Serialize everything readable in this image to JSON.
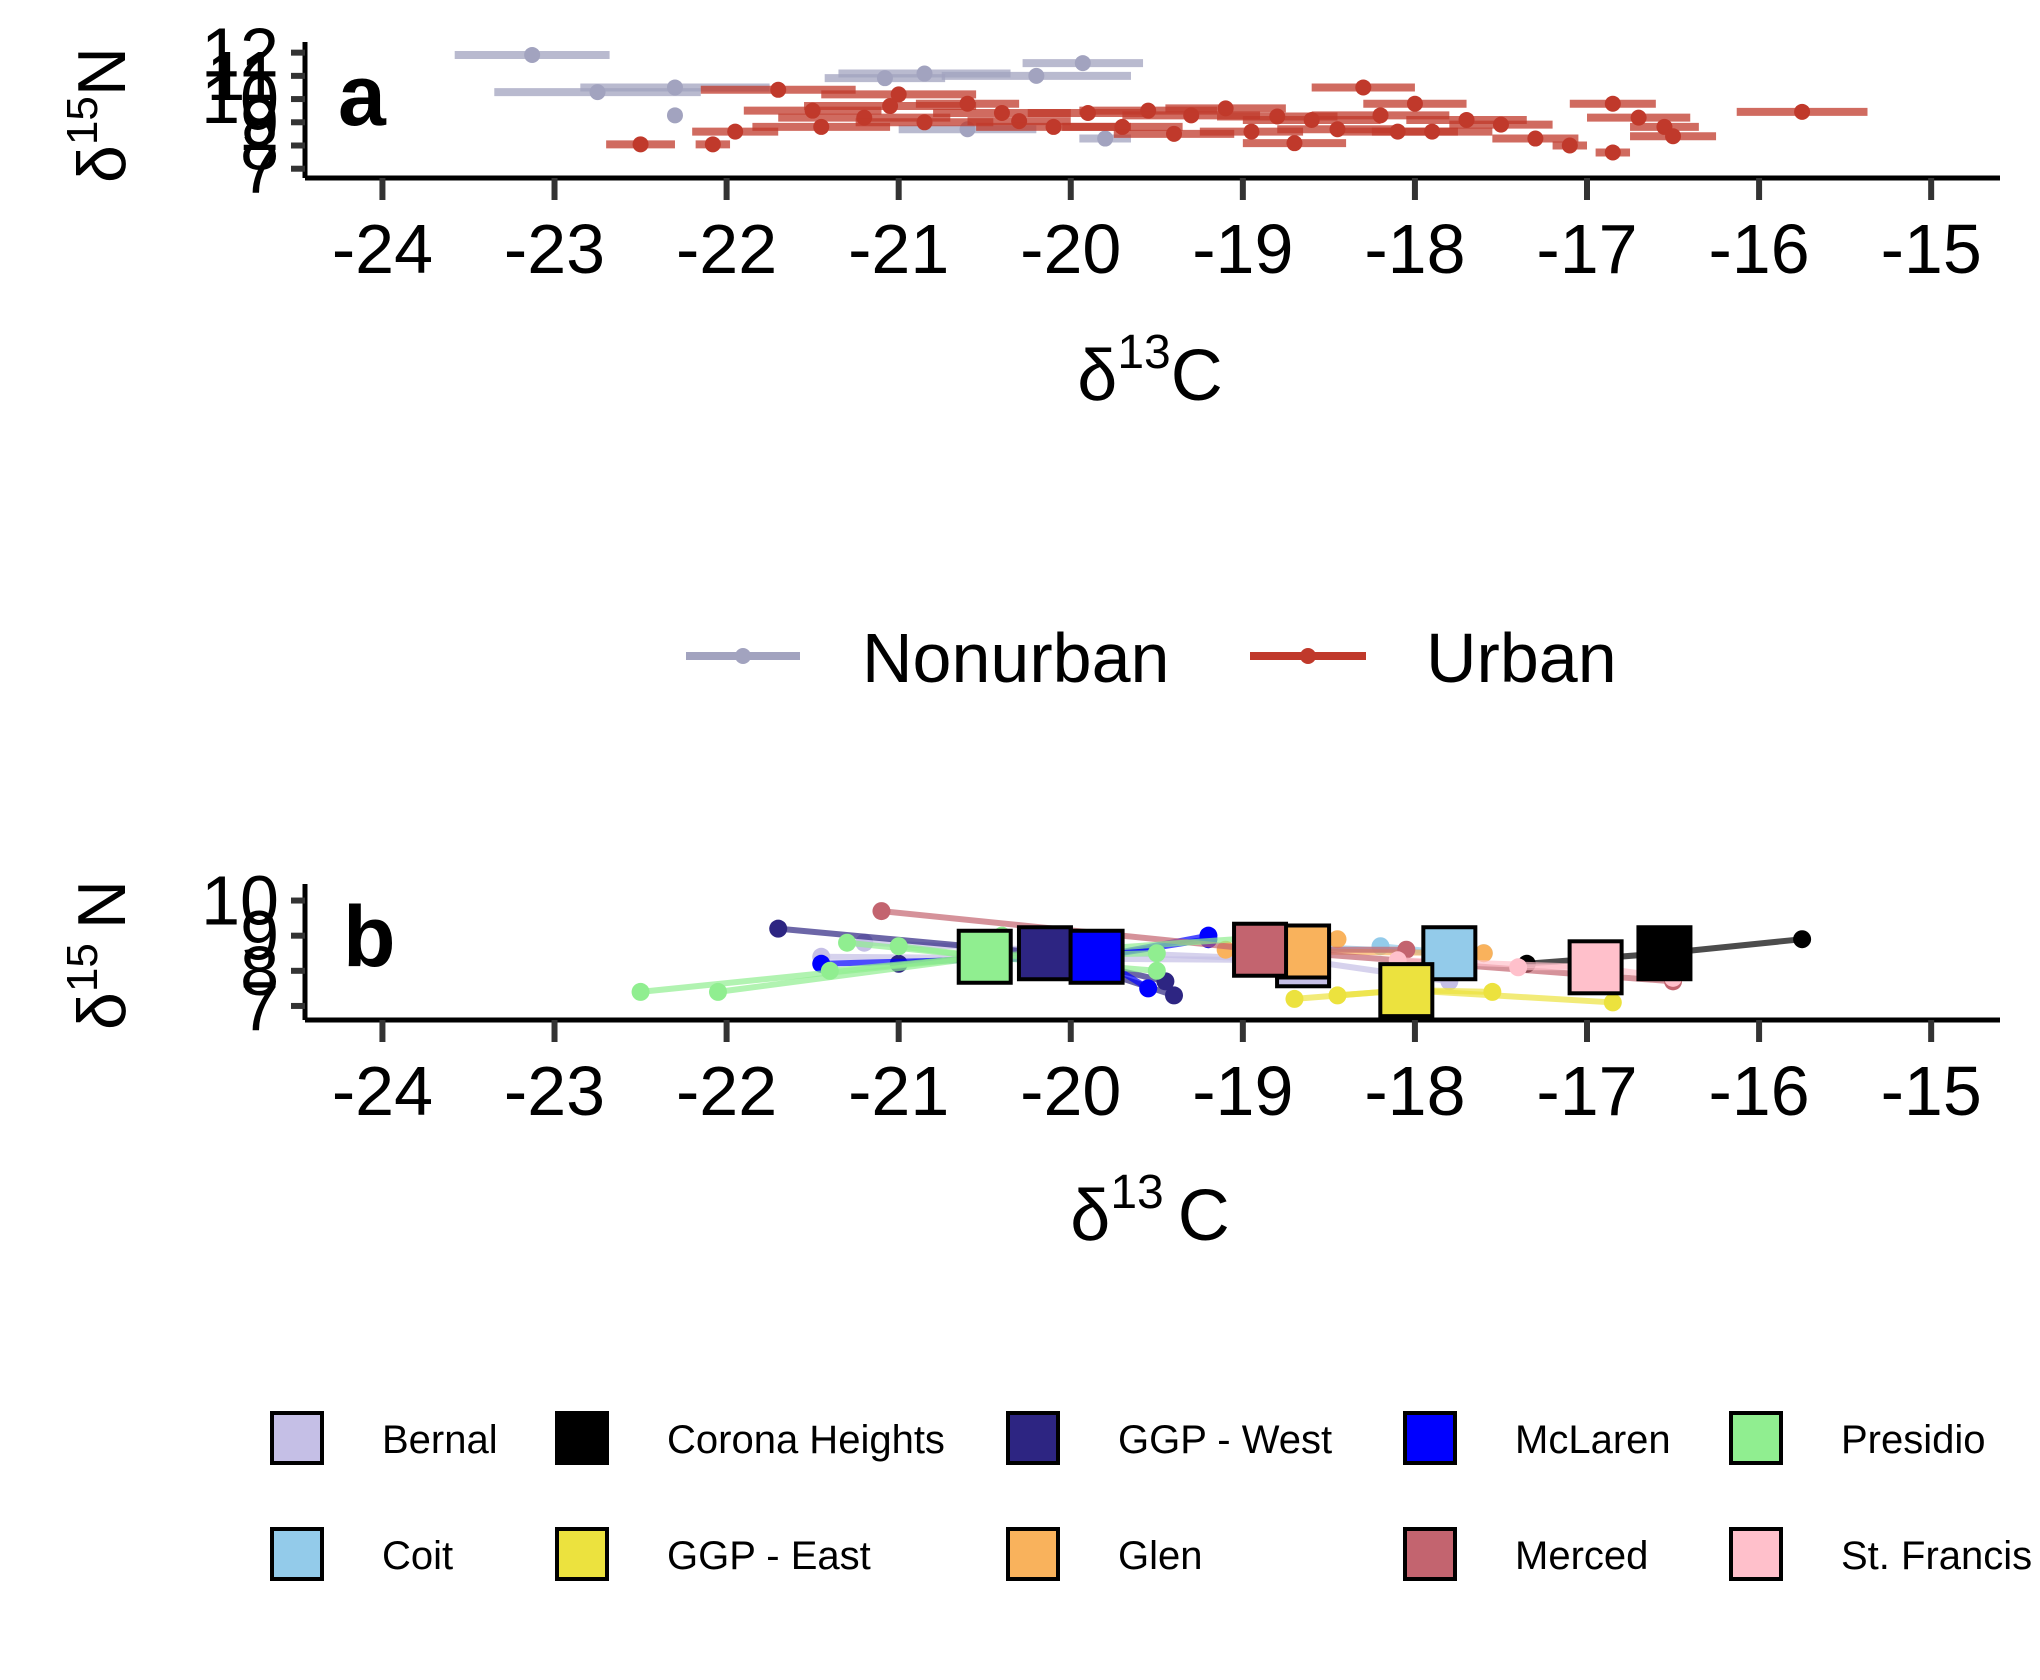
{
  "chart_data": [
    {
      "panel": "a",
      "type": "scatter",
      "xlabel_main": "δ",
      "xlabel_sup": "13",
      "xlabel_tail": "C",
      "ylabel_main": "δ",
      "ylabel_sup": "15",
      "ylabel_tail": "N",
      "xlim": [
        -24.45,
        -14.6
      ],
      "ylim": [
        6.6,
        12.2
      ],
      "xticks": [
        "-24",
        "-23",
        "-22",
        "-21",
        "-20",
        "-19",
        "-18",
        "-17",
        "-16",
        "-15"
      ],
      "yticks": [
        "7",
        "8",
        "9",
        "10",
        "11",
        "12"
      ],
      "legend": {
        "position": "bottom",
        "items": [
          {
            "label": "Nonurban",
            "color": "#a2a3bf"
          },
          {
            "label": "Urban",
            "color": "#c0392b"
          }
        ]
      },
      "series": [
        {
          "name": "Nonurban",
          "color": "#a2a3bf",
          "points": [
            [
              -23.13,
              11.9,
              0.45
            ],
            [
              -22.75,
              10.3,
              0.6
            ],
            [
              -22.3,
              10.5,
              0.55
            ],
            [
              -22.3,
              9.3,
              0
            ],
            [
              -21.08,
              10.9,
              0.35
            ],
            [
              -20.85,
              11.1,
              0.5
            ],
            [
              -20.2,
              11.0,
              0.55
            ],
            [
              -19.93,
              11.55,
              0.35
            ],
            [
              -20.6,
              8.7,
              0.4
            ],
            [
              -19.8,
              8.3,
              0.15
            ]
          ]
        },
        {
          "name": "Urban",
          "color": "#c0392b",
          "points": [
            [
              -22.5,
              8.05,
              0.2
            ],
            [
              -22.08,
              8.05,
              0.1
            ],
            [
              -21.95,
              8.6,
              0.25
            ],
            [
              -21.7,
              10.4,
              0.45
            ],
            [
              -21.5,
              9.5,
              0.4
            ],
            [
              -21.45,
              8.8,
              0.4
            ],
            [
              -21.2,
              9.2,
              0.5
            ],
            [
              -21.05,
              9.7,
              0.5
            ],
            [
              -21.0,
              10.2,
              0.45
            ],
            [
              -20.85,
              9.0,
              0.4
            ],
            [
              -20.6,
              9.8,
              0.3
            ],
            [
              -20.4,
              9.4,
              0.4
            ],
            [
              -20.3,
              9.05,
              0.3
            ],
            [
              -20.1,
              8.8,
              0.45
            ],
            [
              -19.9,
              9.4,
              0.35
            ],
            [
              -19.7,
              8.8,
              0.35
            ],
            [
              -19.55,
              9.5,
              0.4
            ],
            [
              -19.4,
              8.5,
              0.35
            ],
            [
              -19.3,
              9.3,
              0.4
            ],
            [
              -19.1,
              9.6,
              0.35
            ],
            [
              -18.95,
              8.6,
              0.3
            ],
            [
              -18.8,
              9.25,
              0.35
            ],
            [
              -18.7,
              8.1,
              0.3
            ],
            [
              -18.6,
              9.1,
              0.4
            ],
            [
              -18.45,
              8.7,
              0.35
            ],
            [
              -18.3,
              10.5,
              0.3
            ],
            [
              -18.2,
              9.3,
              0.4
            ],
            [
              -18.1,
              8.6,
              0.35
            ],
            [
              -18.0,
              9.8,
              0.3
            ],
            [
              -17.9,
              8.6,
              0.35
            ],
            [
              -17.7,
              9.1,
              0.35
            ],
            [
              -17.5,
              8.9,
              0.3
            ],
            [
              -17.3,
              8.3,
              0.25
            ],
            [
              -17.1,
              8.0,
              0.1
            ],
            [
              -16.85,
              9.8,
              0.25
            ],
            [
              -16.7,
              9.2,
              0.3
            ],
            [
              -16.55,
              8.8,
              0.2
            ],
            [
              -16.5,
              8.4,
              0.25
            ],
            [
              -16.85,
              7.7,
              0.1
            ],
            [
              -15.75,
              9.45,
              0.38
            ]
          ]
        }
      ]
    },
    {
      "panel": "b",
      "type": "line",
      "xlabel_main": "δ",
      "xlabel_sup": "13",
      "xlabel_tail": "C",
      "ylabel_main": "δ",
      "ylabel_sup": "15",
      "ylabel_tail": "N",
      "xlim": [
        -24.45,
        -14.6
      ],
      "ylim": [
        6.6,
        10.3
      ],
      "xticks": [
        "-24",
        "-23",
        "-22",
        "-21",
        "-20",
        "-19",
        "-18",
        "-17",
        "-16",
        "-15"
      ],
      "yticks": [
        "7",
        "8",
        "9",
        "10"
      ],
      "legend": {
        "position": "bottom"
      },
      "series": [
        {
          "name": "Bernal",
          "color": "#c5bfe6",
          "centroid": [
            -18.65,
            8.3
          ],
          "points": [
            [
              -21.45,
              8.4
            ],
            [
              -21.2,
              8.8
            ],
            [
              -17.8,
              7.7
            ]
          ]
        },
        {
          "name": "Coit",
          "color": "#93cbea",
          "centroid": [
            -17.8,
            8.5
          ],
          "points": [
            [
              -18.7,
              8.7
            ],
            [
              -17.6,
              8.5
            ],
            [
              -18.2,
              8.7
            ]
          ]
        },
        {
          "name": "Corona Heights",
          "color": "#000000",
          "centroid": [
            -16.55,
            8.5
          ],
          "points": [
            [
              -17.35,
              8.2
            ],
            [
              -15.75,
              8.9
            ]
          ]
        },
        {
          "name": "GGP - East",
          "color": "#ece23e",
          "centroid": [
            -18.05,
            7.45
          ],
          "points": [
            [
              -18.7,
              7.2
            ],
            [
              -18.45,
              7.3
            ],
            [
              -17.55,
              7.4
            ],
            [
              -16.85,
              7.1
            ]
          ]
        },
        {
          "name": "GGP - West",
          "color": "#2d2582",
          "centroid": [
            -20.15,
            8.5
          ],
          "points": [
            [
              -21.7,
              9.2
            ],
            [
              -21.0,
              8.2
            ],
            [
              -19.45,
              7.7
            ],
            [
              -19.4,
              7.3
            ]
          ]
        },
        {
          "name": "Glen",
          "color": "#f9b25c",
          "centroid": [
            -18.65,
            8.55
          ],
          "points": [
            [
              -18.45,
              8.9
            ],
            [
              -19.1,
              8.6
            ],
            [
              -17.6,
              8.5
            ]
          ]
        },
        {
          "name": "McLaren",
          "color": "#0000ff",
          "centroid": [
            -19.85,
            8.4
          ],
          "points": [
            [
              -21.45,
              8.2
            ],
            [
              -19.2,
              9.0
            ],
            [
              -19.2,
              8.9
            ],
            [
              -19.55,
              7.5
            ]
          ]
        },
        {
          "name": "Merced",
          "color": "#c3646f",
          "centroid": [
            -18.9,
            8.6
          ],
          "points": [
            [
              -21.1,
              9.7
            ],
            [
              -18.05,
              8.6
            ],
            [
              -16.5,
              7.7
            ]
          ]
        },
        {
          "name": "Presidio",
          "color": "#90ee90",
          "centroid": [
            -20.5,
            8.4
          ],
          "points": [
            [
              -22.5,
              7.4
            ],
            [
              -22.05,
              7.4
            ],
            [
              -21.4,
              8.0
            ],
            [
              -21.3,
              8.8
            ],
            [
              -21.0,
              8.7
            ],
            [
              -20.4,
              9.0
            ],
            [
              -19.5,
              8.0
            ],
            [
              -18.75,
              9.0
            ],
            [
              -19.5,
              8.5
            ]
          ]
        },
        {
          "name": "St. Francis",
          "color": "#ffc0cb",
          "centroid": [
            -16.95,
            8.1
          ],
          "points": [
            [
              -16.5,
              7.8
            ],
            [
              -17.4,
              8.1
            ],
            [
              -18.1,
              8.3
            ]
          ]
        }
      ]
    }
  ]
}
